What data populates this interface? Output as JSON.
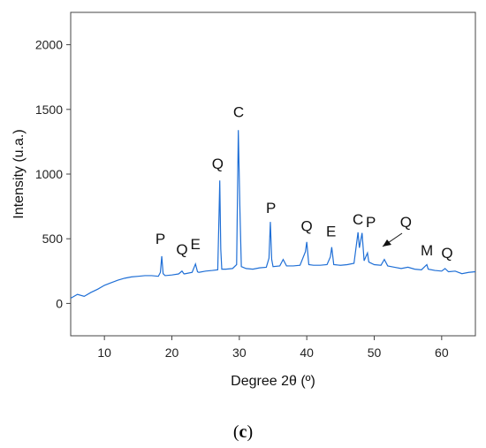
{
  "chart_data": {
    "type": "line",
    "title": "",
    "xlabel": "Degree 2θ (º)",
    "ylabel": "Intensity (u.a.)",
    "xlim": [
      5,
      65
    ],
    "ylim": [
      -250,
      2250
    ],
    "x_ticks": [
      10,
      20,
      30,
      40,
      50,
      60
    ],
    "y_ticks": [
      0,
      500,
      1000,
      1500,
      2000
    ],
    "grid": false,
    "series_color": "#1f6fd6",
    "series": [
      {
        "points": [
          [
            5,
            40
          ],
          [
            6,
            70
          ],
          [
            7,
            55
          ],
          [
            8,
            85
          ],
          [
            9,
            110
          ],
          [
            10,
            140
          ],
          [
            11,
            160
          ],
          [
            12,
            180
          ],
          [
            13,
            195
          ],
          [
            14,
            205
          ],
          [
            15,
            210
          ],
          [
            16,
            215
          ],
          [
            17,
            215
          ],
          [
            18,
            210
          ],
          [
            18.3,
            240
          ],
          [
            18.5,
            365
          ],
          [
            18.7,
            230
          ],
          [
            19,
            215
          ],
          [
            20,
            220
          ],
          [
            21,
            228
          ],
          [
            21.5,
            250
          ],
          [
            21.8,
            228
          ],
          [
            22,
            230
          ],
          [
            23,
            240
          ],
          [
            23.5,
            305
          ],
          [
            23.8,
            245
          ],
          [
            24,
            240
          ],
          [
            25,
            250
          ],
          [
            26,
            255
          ],
          [
            26.8,
            260
          ],
          [
            27.0,
            700
          ],
          [
            27.1,
            950
          ],
          [
            27.25,
            420
          ],
          [
            27.4,
            265
          ],
          [
            28,
            265
          ],
          [
            29,
            270
          ],
          [
            29.6,
            300
          ],
          [
            29.85,
            1340
          ],
          [
            30.1,
            700
          ],
          [
            30.3,
            285
          ],
          [
            31,
            270
          ],
          [
            32,
            265
          ],
          [
            33,
            275
          ],
          [
            34,
            280
          ],
          [
            34.4,
            350
          ],
          [
            34.6,
            630
          ],
          [
            34.8,
            340
          ],
          [
            35,
            285
          ],
          [
            36,
            290
          ],
          [
            36.5,
            340
          ],
          [
            37,
            290
          ],
          [
            38,
            290
          ],
          [
            39,
            295
          ],
          [
            39.8,
            400
          ],
          [
            40.0,
            475
          ],
          [
            40.3,
            300
          ],
          [
            41,
            295
          ],
          [
            42,
            295
          ],
          [
            43,
            300
          ],
          [
            43.5,
            360
          ],
          [
            43.7,
            435
          ],
          [
            44,
            300
          ],
          [
            45,
            295
          ],
          [
            46,
            300
          ],
          [
            47,
            310
          ],
          [
            47.6,
            550
          ],
          [
            47.8,
            430
          ],
          [
            48.2,
            545
          ],
          [
            48.5,
            330
          ],
          [
            49,
            390
          ],
          [
            49.2,
            320
          ],
          [
            50,
            300
          ],
          [
            51,
            295
          ],
          [
            51.5,
            340
          ],
          [
            52,
            290
          ],
          [
            53,
            280
          ],
          [
            54,
            270
          ],
          [
            55,
            280
          ],
          [
            56,
            265
          ],
          [
            57,
            260
          ],
          [
            57.8,
            300
          ],
          [
            58,
            265
          ],
          [
            59,
            255
          ],
          [
            60,
            250
          ],
          [
            60.5,
            270
          ],
          [
            61,
            245
          ],
          [
            62,
            250
          ],
          [
            63,
            230
          ],
          [
            64,
            240
          ],
          [
            65,
            245
          ]
        ]
      }
    ],
    "annotations": [
      {
        "text": "P",
        "x": 18.3,
        "y": 460
      },
      {
        "text": "Q",
        "x": 21.5,
        "y": 380
      },
      {
        "text": "E",
        "x": 23.5,
        "y": 420
      },
      {
        "text": "Q",
        "x": 26.8,
        "y": 1040
      },
      {
        "text": "C",
        "x": 29.9,
        "y": 1440
      },
      {
        "text": "P",
        "x": 34.7,
        "y": 700
      },
      {
        "text": "Q",
        "x": 40.0,
        "y": 560
      },
      {
        "text": "E",
        "x": 43.6,
        "y": 520
      },
      {
        "text": "C",
        "x": 47.6,
        "y": 610
      },
      {
        "text": "P",
        "x": 49.5,
        "y": 590
      },
      {
        "text": "Q",
        "x": 54.7,
        "y": 590
      },
      {
        "text": "M",
        "x": 57.8,
        "y": 370
      },
      {
        "text": "Q",
        "x": 60.8,
        "y": 350
      }
    ]
  },
  "figure": {
    "panel_label_open": "(",
    "panel_label_letter": "c",
    "panel_label_close": ")"
  }
}
